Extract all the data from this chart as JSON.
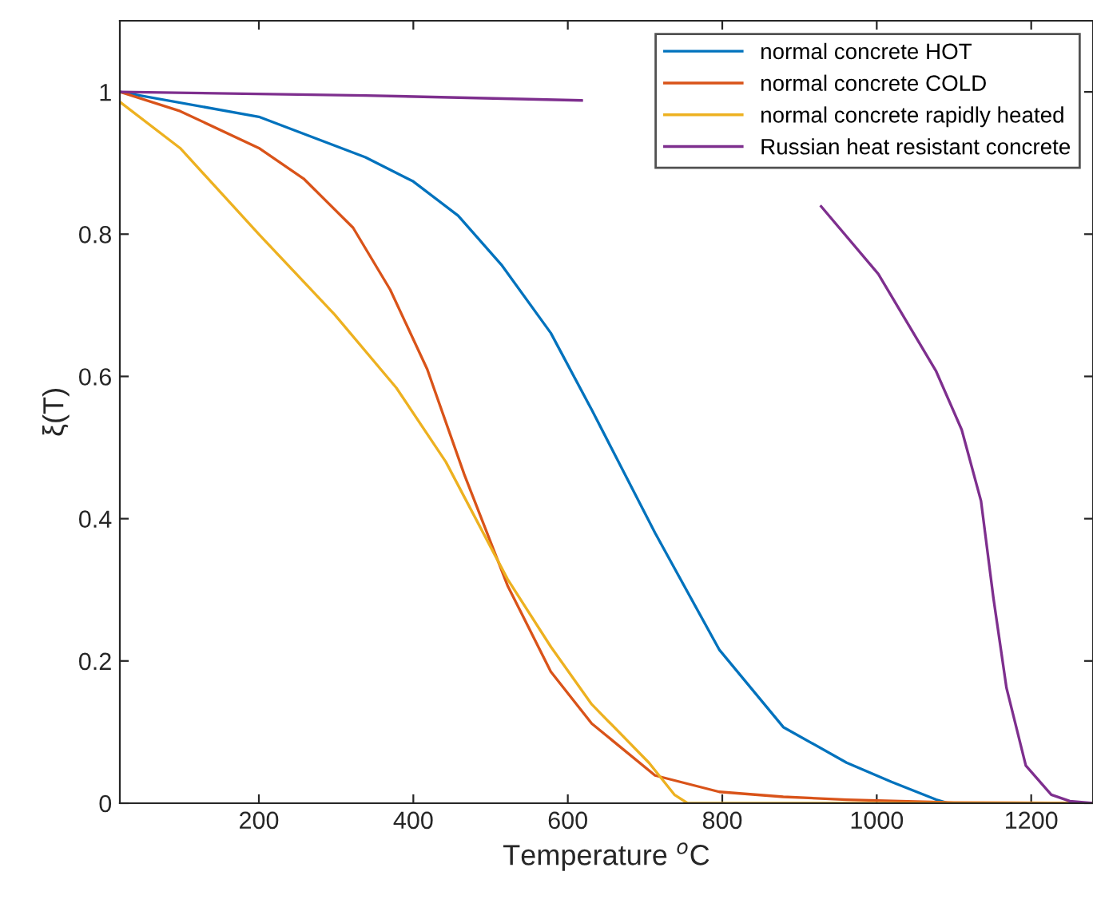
{
  "chart_data": {
    "type": "line",
    "xlabel": "Temperature $^{o}$C",
    "ylabel": "ξ(T)",
    "xlim": [
      20,
      1280
    ],
    "xticks": [
      200,
      400,
      600,
      800,
      1000,
      1200
    ],
    "ylim": [
      0,
      1.1
    ],
    "yticks": [
      0,
      0.2,
      0.4,
      0.6,
      0.8,
      1
    ],
    "grid": false,
    "legend": "top right",
    "marker": "none",
    "line_style": "solid",
    "series": [
      {
        "name": "normal concrete HOT",
        "color": "#0072bd",
        "x": [
          20,
          200,
          338,
          400,
          458,
          514,
          578,
          631,
          713,
          796,
          879,
          961,
          1019,
          1077,
          1093,
          1280
        ],
        "values": [
          1,
          0.965,
          0.908,
          0.874,
          0.826,
          0.757,
          0.661,
          0.553,
          0.38,
          0.216,
          0.107,
          0.057,
          0.03,
          0.005,
          0,
          0
        ]
      },
      {
        "name": "normal concrete COLD",
        "color": "#d95319",
        "x": [
          20,
          98,
          200,
          258,
          322,
          370,
          418,
          466,
          522,
          578,
          631,
          713,
          796,
          879,
          961,
          1100,
          1280
        ],
        "values": [
          1,
          0.973,
          0.921,
          0.878,
          0.809,
          0.722,
          0.61,
          0.462,
          0.306,
          0.185,
          0.112,
          0.039,
          0.016,
          0.009,
          0.005,
          0.001,
          0
        ]
      },
      {
        "name": "normal concrete rapidly heated",
        "color": "#edb120",
        "x": [
          20,
          98,
          200,
          298,
          378,
          442,
          522,
          578,
          631,
          705,
          738,
          755,
          1280
        ],
        "values": [
          0.986,
          0.921,
          0.8,
          0.687,
          0.584,
          0.48,
          0.315,
          0.22,
          0.139,
          0.057,
          0.012,
          0,
          0
        ]
      },
      {
        "name": "Russian heat resistant concrete",
        "color": "#7e2f8e",
        "x": [
          20,
          338,
          618,
          800,
          928,
          1002,
          1077,
          1110,
          1135,
          1151,
          1168,
          1193,
          1226,
          1250,
          1280
        ],
        "values": [
          1,
          0.995,
          0.988,
          null,
          0.839,
          0.744,
          0.607,
          0.525,
          0.425,
          0.289,
          0.162,
          0.053,
          0.012,
          0.003,
          0
        ]
      }
    ]
  }
}
